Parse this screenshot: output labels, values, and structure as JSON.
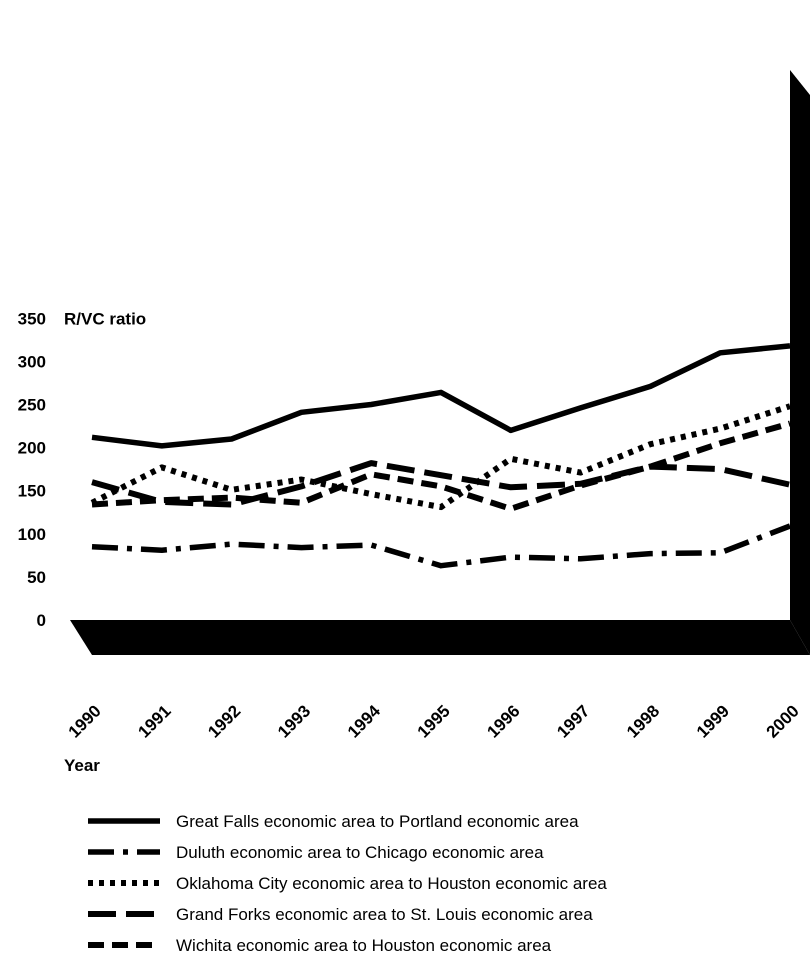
{
  "chart_data": {
    "type": "line",
    "ylabel": "R/VC ratio",
    "xlabel": "Year",
    "ylim": [
      0,
      350
    ],
    "yticks": [
      "0",
      "50",
      "100",
      "150",
      "200",
      "250",
      "300",
      "350"
    ],
    "categories": [
      "1990",
      "1991",
      "1992",
      "1993",
      "1994",
      "1995",
      "1996",
      "1997",
      "1998",
      "1999",
      "2000"
    ],
    "grid": false,
    "legend_position": "bottom",
    "series": [
      {
        "name": "Great Falls economic area to Portland economic area",
        "style": "solid",
        "values": [
          212,
          202,
          210,
          241,
          250,
          264,
          220,
          246,
          271,
          310,
          318
        ]
      },
      {
        "name": "Duluth economic area to Chicago economic area",
        "style": "dash-dot",
        "values": [
          85,
          81,
          88,
          84,
          87,
          63,
          73,
          71,
          77,
          78,
          109
        ]
      },
      {
        "name": "Oklahoma City economic area to Houston economic area",
        "style": "dotted",
        "values": [
          136,
          177,
          151,
          163,
          146,
          131,
          187,
          171,
          204,
          222,
          248
        ]
      },
      {
        "name": "Grand Forks economic area to St. Louis economic area",
        "style": "long-dash",
        "values": [
          160,
          137,
          134,
          155,
          182,
          168,
          154,
          158,
          178,
          175,
          157
        ]
      },
      {
        "name": "Wichita economic area to Houston economic area",
        "style": "short-dash",
        "values": [
          134,
          139,
          142,
          136,
          169,
          155,
          129,
          156,
          178,
          205,
          228
        ]
      }
    ]
  }
}
